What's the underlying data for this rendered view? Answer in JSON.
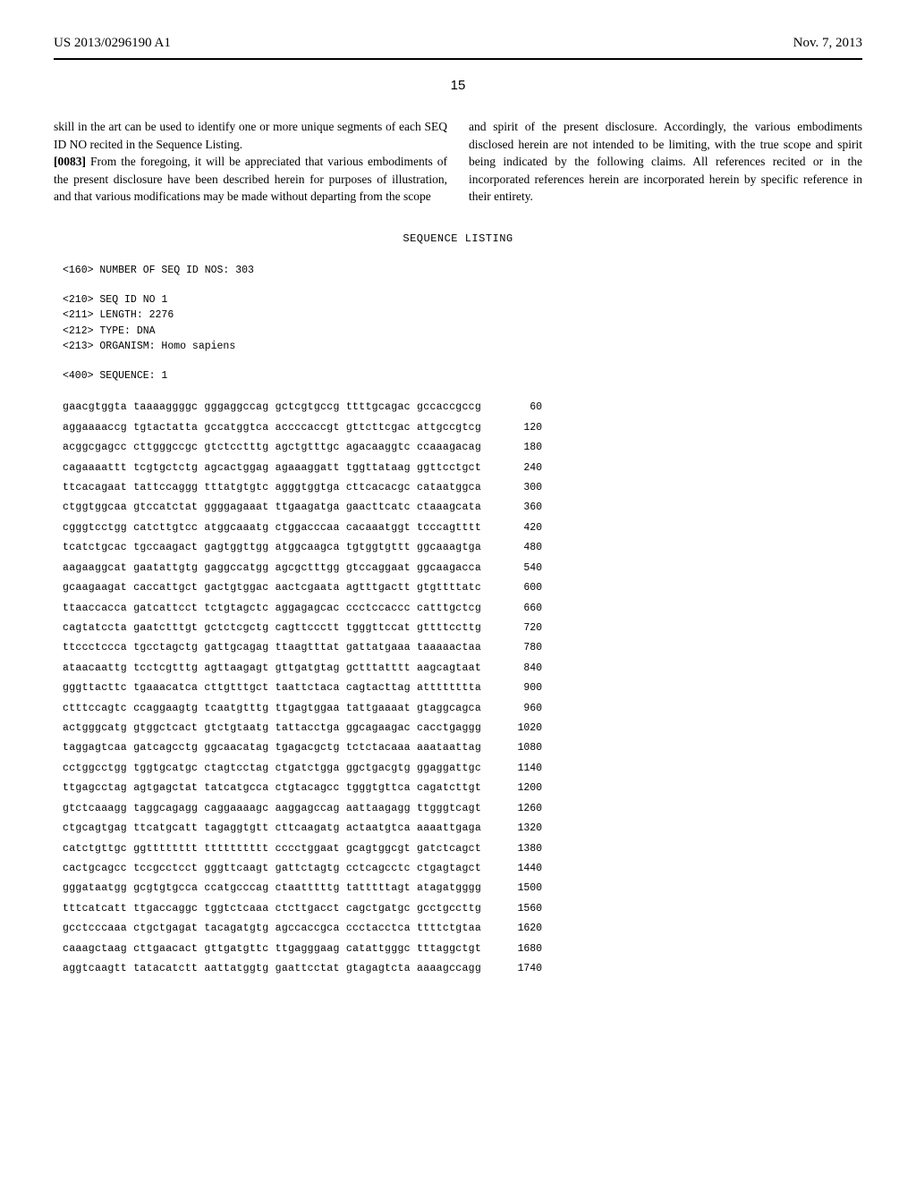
{
  "header": {
    "left": "US 2013/0296190 A1",
    "right": "Nov. 7, 2013",
    "page_number": "15"
  },
  "body": {
    "col1_p1": "skill in the art can be used to identify one or more unique segments of each SEQ ID NO recited in the Sequence Listing.",
    "col1_p2_num": "[0083]",
    "col1_p2": " From the foregoing, it will be appreciated that various embodiments of the present disclosure have been described herein for purposes of illustration, and that various modifications may be made without departing from the scope",
    "col2_p1": "and spirit of the present disclosure. Accordingly, the various embodiments disclosed herein are not intended to be limiting, with the true scope and spirit being indicated by the following claims. All references recited or in the incorporated references herein are incorporated herein by specific reference in their entirety."
  },
  "sequence": {
    "heading": "SEQUENCE LISTING",
    "meta_160": "<160> NUMBER OF SEQ ID NOS: 303",
    "meta_210": "<210> SEQ ID NO 1",
    "meta_211": "<211> LENGTH: 2276",
    "meta_212": "<212> TYPE: DNA",
    "meta_213": "<213> ORGANISM: Homo sapiens",
    "meta_400": "<400> SEQUENCE: 1",
    "rows": [
      {
        "seq": "gaacgtggta taaaaggggc gggaggccag gctcgtgccg ttttgcagac gccaccgccg",
        "pos": "60"
      },
      {
        "seq": "aggaaaaccg tgtactatta gccatggtca accccaccgt gttcttcgac attgccgtcg",
        "pos": "120"
      },
      {
        "seq": "acggcgagcc cttgggccgc gtctcctttg agctgtttgc agacaaggtc ccaaagacag",
        "pos": "180"
      },
      {
        "seq": "cagaaaattt tcgtgctctg agcactggag agaaaggatt tggttataag ggttcctgct",
        "pos": "240"
      },
      {
        "seq": "ttcacagaat tattccaggg tttatgtgtc agggtggtga cttcacacgc cataatggca",
        "pos": "300"
      },
      {
        "seq": "ctggtggcaa gtccatctat ggggagaaat ttgaagatga gaacttcatc ctaaagcata",
        "pos": "360"
      },
      {
        "seq": "cgggtcctgg catcttgtcc atggcaaatg ctggacccaa cacaaatggt tcccagtttt",
        "pos": "420"
      },
      {
        "seq": "tcatctgcac tgccaagact gagtggttgg atggcaagca tgtggtgttt ggcaaagtga",
        "pos": "480"
      },
      {
        "seq": "aagaaggcat gaatattgtg gaggccatgg agcgctttgg gtccaggaat ggcaagacca",
        "pos": "540"
      },
      {
        "seq": "gcaagaagat caccattgct gactgtggac aactcgaata agtttgactt gtgttttatc",
        "pos": "600"
      },
      {
        "seq": "ttaaccacca gatcattcct tctgtagctc aggagagcac ccctccaccc catttgctcg",
        "pos": "660"
      },
      {
        "seq": "cagtatccta gaatctttgt gctctcgctg cagttccctt tgggttccat gttttccttg",
        "pos": "720"
      },
      {
        "seq": "ttccctccca tgcctagctg gattgcagag ttaagtttat gattatgaaa taaaaactaa",
        "pos": "780"
      },
      {
        "seq": "ataacaattg tcctcgtttg agttaagagt gttgatgtag gctttatttt aagcagtaat",
        "pos": "840"
      },
      {
        "seq": "gggttacttc tgaaacatca cttgtttgct taattctaca cagtacttag atttttttta",
        "pos": "900"
      },
      {
        "seq": "ctttccagtc ccaggaagtg tcaatgtttg ttgagtggaa tattgaaaat gtaggcagca",
        "pos": "960"
      },
      {
        "seq": "actgggcatg gtggctcact gtctgtaatg tattacctga ggcagaagac cacctgaggg",
        "pos": "1020"
      },
      {
        "seq": "taggagtcaa gatcagcctg ggcaacatag tgagacgctg tctctacaaa aaataattag",
        "pos": "1080"
      },
      {
        "seq": "cctggcctgg tggtgcatgc ctagtcctag ctgatctgga ggctgacgtg ggaggattgc",
        "pos": "1140"
      },
      {
        "seq": "ttgagcctag agtgagctat tatcatgcca ctgtacagcc tgggtgttca cagatcttgt",
        "pos": "1200"
      },
      {
        "seq": "gtctcaaagg taggcagagg caggaaaagc aaggagccag aattaagagg ttgggtcagt",
        "pos": "1260"
      },
      {
        "seq": "ctgcagtgag ttcatgcatt tagaggtgtt cttcaagatg actaatgtca aaaattgaga",
        "pos": "1320"
      },
      {
        "seq": "catctgttgc ggtttttttt tttttttttt cccctggaat gcagtggcgt gatctcagct",
        "pos": "1380"
      },
      {
        "seq": "cactgcagcc tccgcctcct gggttcaagt gattctagtg cctcagcctc ctgagtagct",
        "pos": "1440"
      },
      {
        "seq": "gggataatgg gcgtgtgcca ccatgcccag ctaatttttg tatttttagt atagatgggg",
        "pos": "1500"
      },
      {
        "seq": "tttcatcatt ttgaccaggc tggtctcaaa ctcttgacct cagctgatgc gcctgccttg",
        "pos": "1560"
      },
      {
        "seq": "gcctcccaaa ctgctgagat tacagatgtg agccaccgca ccctacctca ttttctgtaa",
        "pos": "1620"
      },
      {
        "seq": "caaagctaag cttgaacact gttgatgttc ttgagggaag catattgggc tttaggctgt",
        "pos": "1680"
      },
      {
        "seq": "aggtcaagtt tatacatctt aattatggtg gaattcctat gtagagtcta aaaagccagg",
        "pos": "1740"
      }
    ]
  }
}
